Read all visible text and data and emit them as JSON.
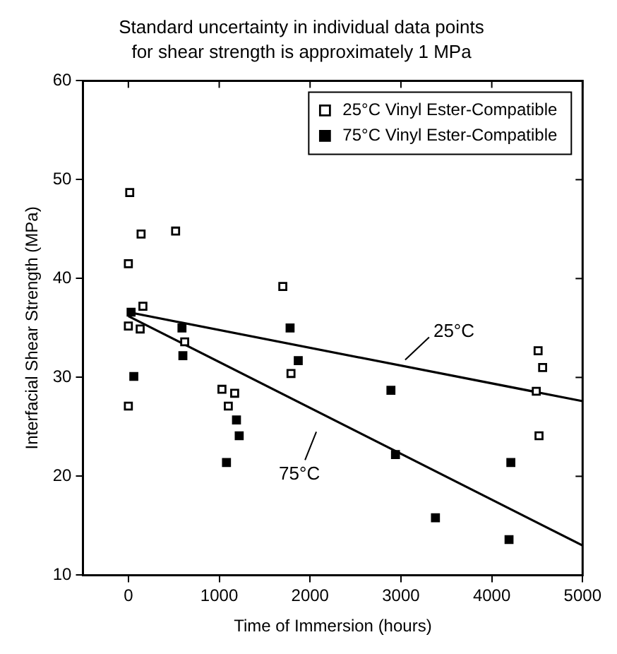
{
  "chart_data": {
    "type": "scatter",
    "title": "Standard uncertainty in individual data points",
    "subtitle": "for shear strength is approximately 1 MPa",
    "xlabel": "Time of Immersion (hours)",
    "ylabel": "Interfacial Shear Strength (MPa)",
    "xlim": [
      -500,
      5000
    ],
    "xticks": [
      0,
      1000,
      2000,
      3000,
      4000,
      5000
    ],
    "ylim": [
      10,
      60
    ],
    "yticks": [
      10,
      20,
      30,
      40,
      50,
      60
    ],
    "grid": false,
    "legend": "top right",
    "marker": "square",
    "series": [
      {
        "name": "25°C Vinyl Ester-Compatible",
        "color": "#000000",
        "x": [
          15,
          140,
          520,
          0,
          1700,
          160,
          0,
          130,
          620,
          1790,
          0,
          1030,
          1170,
          1100,
          4510,
          4560,
          4490,
          4520
        ],
        "values": [
          48.7,
          44.5,
          44.8,
          41.5,
          39.2,
          37.2,
          35.2,
          34.9,
          33.6,
          30.4,
          27.1,
          28.8,
          28.4,
          27.1,
          32.7,
          31.0,
          28.6,
          24.1
        ]
      },
      {
        "name": "75°C Vinyl Ester-Compatible",
        "color": "#000000",
        "x": [
          30,
          60,
          590,
          600,
          1080,
          1190,
          1220,
          1780,
          1870,
          2890,
          2940,
          3380,
          4210,
          4190
        ],
        "values": [
          36.6,
          30.1,
          35.0,
          32.2,
          21.4,
          25.7,
          24.1,
          35.0,
          31.7,
          28.7,
          22.2,
          15.8,
          21.4,
          13.6
        ]
      },
      {
        "color": "#000000",
        "type": "line",
        "marker": "none",
        "x": [
          0,
          5000
        ],
        "values": [
          36.6,
          27.6
        ]
      },
      {
        "color": "#000000",
        "type": "line",
        "marker": "none",
        "x": [
          0,
          5000
        ],
        "values": [
          36.2,
          13.0
        ]
      }
    ],
    "annotations": [
      {
        "text": "25°C",
        "x": 3000,
        "y": 31.2
      },
      {
        "text": "75°C",
        "x": 2100,
        "y": 26.5
      }
    ]
  }
}
